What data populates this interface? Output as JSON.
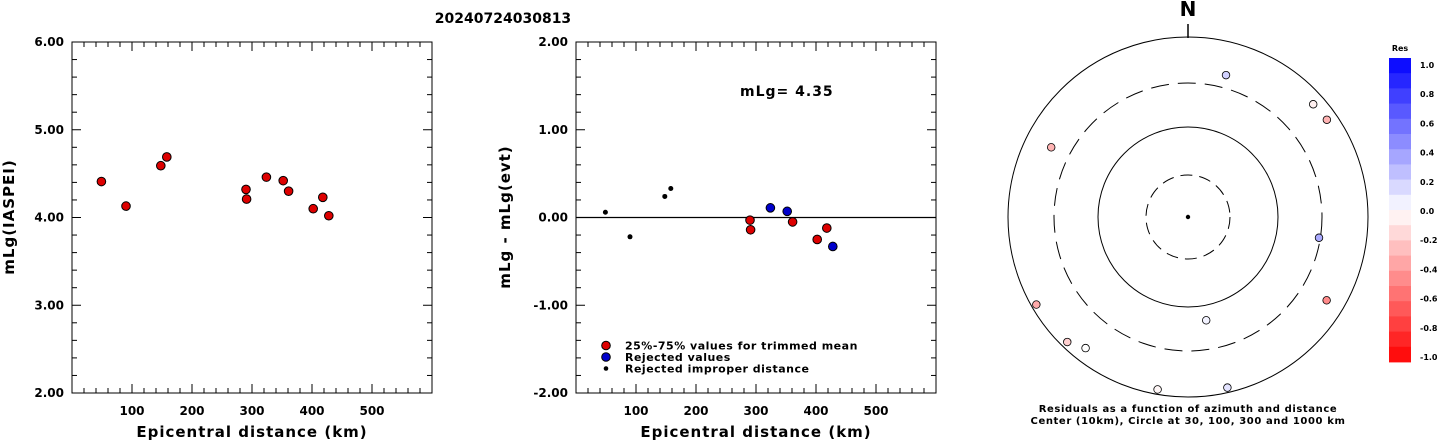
{
  "header": {
    "event_id": "20240724030813"
  },
  "chart_data": [
    {
      "type": "scatter",
      "xlabel": "Epicentral distance (km)",
      "ylabel": "mLg(IASPEI)",
      "xlim": [
        0,
        600
      ],
      "ylim": [
        2.0,
        6.0
      ],
      "x_ticks": [
        "100",
        "200",
        "300",
        "400",
        "500"
      ],
      "y_ticks": [
        "2.00",
        "3.00",
        "4.00",
        "5.00",
        "6.00"
      ],
      "grid": false,
      "series": [
        {
          "color": "#dd0000",
          "points": [
            [
              49,
              4.41
            ],
            [
              90,
              4.13
            ],
            [
              148,
              4.59
            ],
            [
              158,
              4.69
            ],
            [
              290,
              4.32
            ],
            [
              291,
              4.21
            ],
            [
              324,
              4.46
            ],
            [
              352,
              4.42
            ],
            [
              361,
              4.3
            ],
            [
              402,
              4.1
            ],
            [
              418,
              4.23
            ],
            [
              428,
              4.02
            ]
          ]
        }
      ]
    },
    {
      "type": "scatter",
      "xlabel": "Epicentral distance (km)",
      "ylabel": "mLg - mLg(evt)",
      "xlim": [
        0,
        600
      ],
      "ylim": [
        -2.0,
        2.0
      ],
      "x_ticks": [
        "100",
        "200",
        "300",
        "400",
        "500"
      ],
      "y_ticks": [
        "-2.00",
        "-1.00",
        "0.00",
        "1.00",
        "2.00"
      ],
      "grid": false,
      "annotation": "mLg= 4.35",
      "legend_position": "bottom-left",
      "legend": [
        {
          "label": "25%-75% values for trimmed mean",
          "color": "#dd0000",
          "marker": "circle"
        },
        {
          "label": "Rejected values",
          "color": "#0000cc",
          "marker": "circle"
        },
        {
          "label": "Rejected improper distance",
          "color": "#000000",
          "marker": "dot"
        }
      ],
      "series": [
        {
          "label": "25%-75% values for trimmed mean",
          "color": "#dd0000",
          "points": [
            [
              290,
              -0.03
            ],
            [
              291,
              -0.14
            ],
            [
              361,
              -0.05
            ],
            [
              402,
              -0.25
            ],
            [
              418,
              -0.12
            ]
          ]
        },
        {
          "label": "Rejected values",
          "color": "#0000cc",
          "points": [
            [
              324,
              0.11
            ],
            [
              352,
              0.07
            ],
            [
              428,
              -0.33
            ]
          ]
        },
        {
          "label": "Rejected improper distance",
          "color": "#000000",
          "points": [
            [
              49,
              0.06
            ],
            [
              90,
              -0.22
            ],
            [
              148,
              0.24
            ],
            [
              158,
              0.33
            ]
          ]
        }
      ]
    }
  ],
  "polar": {
    "north_label": "N",
    "caption_line1": "Residuals as a function of azimuth and distance",
    "caption_line2": "Center (10km), Circle at 30, 100, 300 and 1000 km",
    "points": [
      {
        "azimuth_deg": 15,
        "distance_km": 420,
        "residual": 0.18
      },
      {
        "azimuth_deg": 48,
        "distance_km": 740,
        "residual": -0.06
      },
      {
        "azimuth_deg": 55,
        "distance_km": 760,
        "residual": -0.3
      },
      {
        "azimuth_deg": 99,
        "distance_km": 290,
        "residual": 0.33
      },
      {
        "azimuth_deg": 121,
        "distance_km": 620,
        "residual": -0.46
      },
      {
        "azimuth_deg": 170,
        "distance_km": 145,
        "residual": 0.05
      },
      {
        "azimuth_deg": 167,
        "distance_km": 880,
        "residual": 0.11
      },
      {
        "azimuth_deg": 190,
        "distance_km": 880,
        "residual": -0.03
      },
      {
        "azimuth_deg": 218,
        "distance_km": 700,
        "residual": 0.0
      },
      {
        "azimuth_deg": 224,
        "distance_km": 850,
        "residual": -0.19
      },
      {
        "azimuth_deg": 240,
        "distance_km": 880,
        "residual": -0.33
      },
      {
        "azimuth_deg": 297,
        "distance_km": 500,
        "residual": -0.3
      }
    ]
  },
  "colorbar": {
    "title": "Res",
    "tick_labels": [
      "1.0",
      "0.8",
      "0.6",
      "0.4",
      "0.2",
      "0.0",
      "-0.2",
      "-0.4",
      "-0.6",
      "-0.8",
      "-1.0"
    ]
  }
}
